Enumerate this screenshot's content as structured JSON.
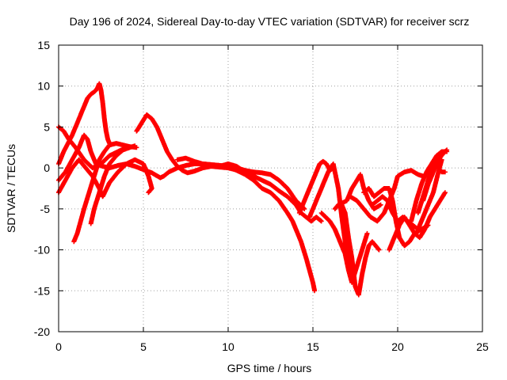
{
  "chart_data": {
    "type": "scatter",
    "title": "Day 196 of 2024, Sidereal Day-to-day VTEC variation (SDTVAR) for receiver scrz",
    "xlabel": "GPS time / hours",
    "ylabel": "SDTVAR / TECUs",
    "xlim": [
      0,
      25
    ],
    "ylim": [
      -20,
      15
    ],
    "xticks": [
      0,
      5,
      10,
      15,
      20,
      25
    ],
    "yticks": [
      -20,
      -15,
      -10,
      -5,
      0,
      5,
      10,
      15
    ],
    "xtick_labels": [
      "0",
      "5",
      "10",
      "15",
      "20",
      "25"
    ],
    "ytick_labels": [
      "-20",
      "-15",
      "-10",
      "-5",
      "0",
      "5",
      "10",
      "15"
    ],
    "grid": true,
    "marker": "+",
    "color": "#ff0000",
    "series": [
      {
        "name": "arc-1",
        "x": [
          0.0,
          0.3,
          0.8,
          1.2,
          1.5,
          1.7,
          1.9,
          2.1,
          2.2,
          2.3,
          2.4,
          2.5,
          2.6,
          2.7,
          2.8,
          2.9,
          3.0
        ],
        "y": [
          0.5,
          2.0,
          4.0,
          6.0,
          7.5,
          8.5,
          9.0,
          9.3,
          9.5,
          9.8,
          10.3,
          9.5,
          8.0,
          6.0,
          4.5,
          3.5,
          3.0
        ]
      },
      {
        "name": "arc-2",
        "x": [
          0.0,
          0.4,
          0.8,
          1.2,
          1.5,
          1.7,
          1.9,
          2.2,
          2.6,
          3.0,
          3.5,
          4.0,
          4.5,
          5.0,
          5.5,
          6.0,
          6.2
        ],
        "y": [
          -1.5,
          -0.5,
          1.0,
          2.5,
          4.0,
          3.5,
          2.0,
          0.5,
          0.2,
          0.0,
          0.3,
          0.5,
          0.2,
          -0.2,
          -0.6,
          -1.2,
          -1.0
        ]
      },
      {
        "name": "arc-3",
        "x": [
          0.0,
          0.4,
          0.8,
          1.2,
          1.6,
          2.0,
          2.4,
          2.6,
          3.0,
          3.5,
          4.0,
          4.5,
          5.0,
          5.3,
          5.5,
          5.3
        ],
        "y": [
          -3.0,
          -1.5,
          0.0,
          1.0,
          0.0,
          -1.0,
          -2.5,
          -3.5,
          -1.8,
          -0.5,
          0.5,
          1.0,
          0.5,
          -1.0,
          -2.5,
          -3.0
        ]
      },
      {
        "name": "arc-4",
        "x": [
          0.9,
          1.1,
          1.3,
          1.5,
          1.8,
          2.1,
          2.4,
          2.7,
          3.0,
          3.4,
          3.8,
          4.2,
          4.6
        ],
        "y": [
          -9.0,
          -8.0,
          -6.5,
          -5.0,
          -3.0,
          -1.0,
          1.0,
          2.0,
          2.8,
          3.0,
          2.8,
          2.6,
          2.5
        ]
      },
      {
        "name": "arc-5",
        "x": [
          1.9,
          2.1,
          2.4,
          2.7,
          3.0,
          3.4,
          3.8,
          4.2,
          4.5
        ],
        "y": [
          -6.8,
          -5.0,
          -3.0,
          -1.0,
          0.5,
          1.5,
          2.2,
          2.5,
          2.7
        ]
      },
      {
        "name": "arc-6",
        "x": [
          0.0,
          0.3,
          0.6,
          1.0,
          1.5,
          2.0,
          2.5,
          3.0,
          3.5,
          4.0
        ],
        "y": [
          5.0,
          4.5,
          3.5,
          2.5,
          1.0,
          0.0,
          0.5,
          1.5,
          2.0,
          2.5
        ]
      },
      {
        "name": "arc-7",
        "x": [
          4.6,
          4.9,
          5.2,
          5.5,
          5.8,
          6.1,
          6.4,
          6.7,
          7.0,
          7.3,
          7.6,
          8.0,
          8.5,
          9.0,
          9.5,
          10.0,
          10.4
        ],
        "y": [
          4.5,
          5.5,
          6.5,
          6.0,
          5.0,
          3.5,
          2.0,
          1.0,
          0.2,
          -0.3,
          -0.6,
          -0.4,
          0.0,
          0.2,
          0.1,
          0.0,
          -0.2
        ]
      },
      {
        "name": "arc-8",
        "x": [
          6.2,
          6.5,
          7.0,
          7.5,
          8.0,
          8.5,
          9.0,
          9.5,
          10.0,
          10.5,
          11.0,
          11.5,
          12.0,
          12.5,
          13.0,
          13.5,
          14.0,
          14.5
        ],
        "y": [
          -1.0,
          -0.5,
          0.0,
          0.3,
          0.5,
          0.5,
          0.4,
          0.3,
          0.2,
          0.0,
          -0.3,
          -0.5,
          -0.6,
          -0.8,
          -1.5,
          -2.5,
          -4.0,
          -5.0
        ]
      },
      {
        "name": "arc-9",
        "x": [
          7.0,
          7.5,
          8.0,
          8.5,
          9.0,
          9.5,
          10.0,
          10.5,
          11.0,
          11.5,
          12.0,
          12.5,
          13.0,
          13.5,
          13.8,
          14.0,
          14.3,
          14.6,
          14.8,
          15.0,
          15.1
        ],
        "y": [
          1.0,
          1.2,
          0.8,
          0.5,
          0.4,
          0.3,
          0.2,
          -0.3,
          -0.8,
          -1.5,
          -2.5,
          -3.0,
          -4.0,
          -5.5,
          -6.5,
          -7.5,
          -9.0,
          -11.0,
          -12.5,
          -14.0,
          -15.0
        ]
      },
      {
        "name": "arc-10",
        "x": [
          9.5,
          10.0,
          10.5,
          11.0,
          11.5,
          12.0,
          12.5,
          13.0,
          13.5,
          14.0,
          14.3,
          14.6,
          14.9,
          15.2,
          15.5
        ],
        "y": [
          0.2,
          0.5,
          0.2,
          -0.5,
          -1.0,
          -1.5,
          -2.0,
          -2.8,
          -3.5,
          -4.5,
          -5.5,
          -6.0,
          -6.5,
          -6.0,
          -6.5
        ]
      },
      {
        "name": "arc-11",
        "x": [
          14.2,
          14.4,
          14.6,
          14.8,
          15.0,
          15.2,
          15.4,
          15.6,
          15.8,
          16.0,
          16.2
        ],
        "y": [
          -5.5,
          -4.5,
          -3.5,
          -2.5,
          -1.5,
          -0.5,
          0.5,
          0.8,
          0.5,
          -0.3,
          0.0
        ]
      },
      {
        "name": "arc-12",
        "x": [
          14.8,
          15.0,
          15.3,
          15.6,
          15.9,
          16.2,
          16.5,
          16.7,
          16.9,
          17.1,
          17.3,
          17.5
        ],
        "y": [
          -6.0,
          -5.0,
          -3.5,
          -2.0,
          -0.5,
          0.5,
          -2.5,
          -6.0,
          -9.0,
          -12.0,
          -13.5,
          -12.5
        ]
      },
      {
        "name": "arc-13",
        "x": [
          15.5,
          16.0,
          16.3,
          16.6,
          16.9,
          17.1,
          17.3,
          17.6,
          17.9,
          18.2
        ],
        "y": [
          -5.5,
          -6.5,
          -7.5,
          -9.0,
          -10.5,
          -12.5,
          -14.0,
          -12.0,
          -10.0,
          -8.0
        ]
      },
      {
        "name": "arc-14",
        "x": [
          16.3,
          16.5,
          16.7,
          16.9,
          17.1,
          17.3,
          17.5,
          17.7,
          17.9,
          18.1,
          18.3,
          18.5,
          18.7,
          18.9
        ],
        "y": [
          -5.0,
          -4.5,
          -4.5,
          -5.5,
          -8.5,
          -11.0,
          -14.5,
          -15.5,
          -13.0,
          -11.0,
          -9.5,
          -9.0,
          -9.5,
          -10.0
        ]
      },
      {
        "name": "arc-15",
        "x": [
          16.5,
          17.0,
          17.3,
          17.6,
          17.8,
          18.0,
          18.3,
          18.6,
          19.0
        ],
        "y": [
          -4.5,
          -4.0,
          -2.5,
          -1.5,
          -0.8,
          -2.5,
          -4.0,
          -5.0,
          -4.5
        ]
      },
      {
        "name": "arc-16",
        "x": [
          17.2,
          17.6,
          18.0,
          18.4,
          18.8,
          19.2,
          19.5,
          19.8,
          20.0,
          20.4,
          20.8,
          21.2,
          21.5
        ],
        "y": [
          -3.5,
          -4.0,
          -5.0,
          -6.0,
          -6.5,
          -5.5,
          -4.0,
          -2.5,
          -1.0,
          -0.5,
          -0.3,
          -0.8,
          -1.0
        ]
      },
      {
        "name": "arc-17",
        "x": [
          18.0,
          18.3,
          18.6,
          18.9,
          19.2,
          19.5,
          19.7,
          19.9,
          20.1,
          20.4,
          20.7,
          21.0,
          21.4,
          21.8
        ],
        "y": [
          -3.0,
          -2.5,
          -3.5,
          -3.0,
          -2.5,
          -2.5,
          -4.0,
          -6.5,
          -8.5,
          -9.5,
          -9.0,
          -8.0,
          -7.5,
          -7.0
        ]
      },
      {
        "name": "arc-18",
        "x": [
          18.5,
          18.8,
          19.1,
          19.4,
          19.7,
          20.0,
          20.3,
          20.6,
          20.9,
          21.2,
          21.5,
          21.8,
          22.1,
          22.4,
          22.6
        ],
        "y": [
          -4.5,
          -4.0,
          -3.5,
          -4.0,
          -5.5,
          -6.5,
          -6.0,
          -6.5,
          -7.0,
          -7.5,
          -6.0,
          -4.5,
          -3.0,
          -0.5,
          1.0
        ]
      },
      {
        "name": "arc-19",
        "x": [
          19.5,
          19.8,
          20.1,
          20.4,
          20.7,
          21.0,
          21.3,
          21.6,
          21.9,
          22.2,
          22.5,
          22.8
        ],
        "y": [
          -10.0,
          -8.5,
          -7.0,
          -6.0,
          -7.0,
          -8.0,
          -8.5,
          -7.5,
          -6.0,
          -5.0,
          -4.0,
          -3.0
        ]
      },
      {
        "name": "arc-20",
        "x": [
          20.8,
          21.1,
          21.4,
          21.7,
          22.0,
          22.3,
          22.6,
          22.9
        ],
        "y": [
          -6.5,
          -4.0,
          -2.0,
          -0.5,
          0.5,
          1.5,
          2.0,
          2.0
        ]
      },
      {
        "name": "arc-21",
        "x": [
          21.2,
          21.5,
          21.8,
          22.0,
          22.2,
          22.4,
          22.6,
          22.8
        ],
        "y": [
          -5.5,
          -3.5,
          -1.5,
          0.0,
          0.5,
          0.0,
          -0.5,
          -0.5
        ]
      },
      {
        "name": "arc-22",
        "x": [
          21.5,
          21.8,
          22.1,
          22.4,
          22.7,
          22.9
        ],
        "y": [
          -4.0,
          -2.0,
          -0.5,
          1.0,
          1.8,
          2.2
        ]
      }
    ]
  }
}
